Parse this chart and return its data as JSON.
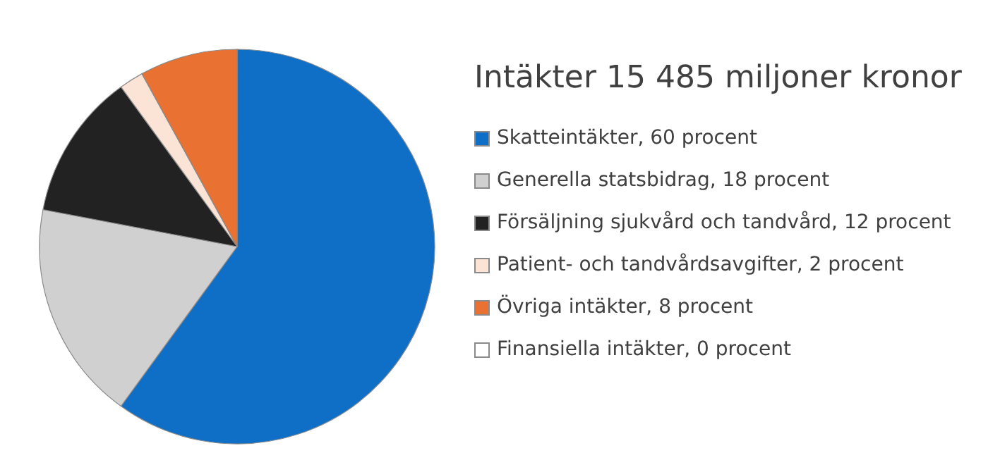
{
  "chart_data": {
    "type": "pie",
    "title": "Intäkter 15 485 miljoner kronor",
    "categories": [
      "Skatteintäkter, 60 procent",
      "Generella statsbidrag, 18 procent",
      "Försäljning sjukvård och tandvård, 12 procent",
      "Patient- och tandvårdsavgifter, 2 procent",
      "Övriga intäkter, 8 procent",
      "Finansiella intäkter, 0 procent"
    ],
    "values": [
      60,
      18,
      12,
      2,
      8,
      0
    ],
    "colors": [
      "#0f6fc6",
      "#d0d0d0",
      "#222222",
      "#fbe3d6",
      "#e97132",
      "#ffffff"
    ],
    "legend": "right"
  }
}
